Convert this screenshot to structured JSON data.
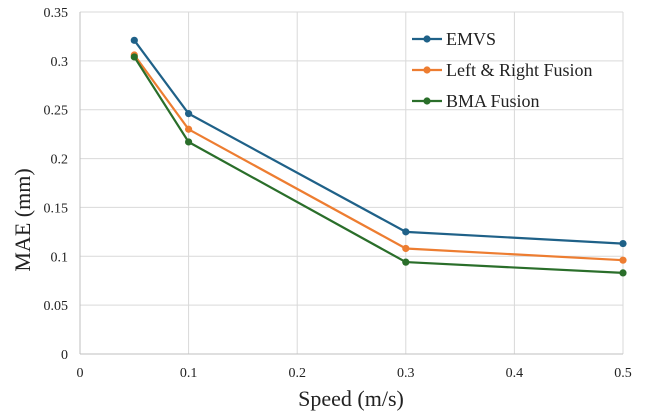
{
  "chart_data": {
    "type": "line",
    "title": "",
    "xlabel": "Speed (m/s)",
    "ylabel": "MAE (mm)",
    "xlim": [
      0,
      0.5
    ],
    "ylim": [
      0,
      0.35
    ],
    "xticks": [
      0,
      0.1,
      0.2,
      0.3,
      0.4,
      0.5
    ],
    "xtick_labels": [
      "0",
      "0.1",
      "0.2",
      "0.3",
      "0.4",
      "0.5"
    ],
    "yticks": [
      0,
      0.05,
      0.1,
      0.15,
      0.2,
      0.25,
      0.3,
      0.35
    ],
    "ytick_labels": [
      "0",
      "0.05",
      "0.1",
      "0.15",
      "0.2",
      "0.25",
      "0.3",
      "0.35"
    ],
    "grid": true,
    "legend_position": "top-right",
    "x": [
      0.05,
      0.1,
      0.3,
      0.5
    ],
    "series": [
      {
        "name": "EMVS",
        "color": "#1f6188",
        "values": [
          0.321,
          0.246,
          0.125,
          0.113
        ]
      },
      {
        "name": "Left & Right Fusion",
        "color": "#ed7d31",
        "values": [
          0.306,
          0.23,
          0.108,
          0.096
        ]
      },
      {
        "name": "BMA Fusion",
        "color": "#2a6e2a",
        "values": [
          0.304,
          0.217,
          0.094,
          0.083
        ]
      }
    ]
  }
}
